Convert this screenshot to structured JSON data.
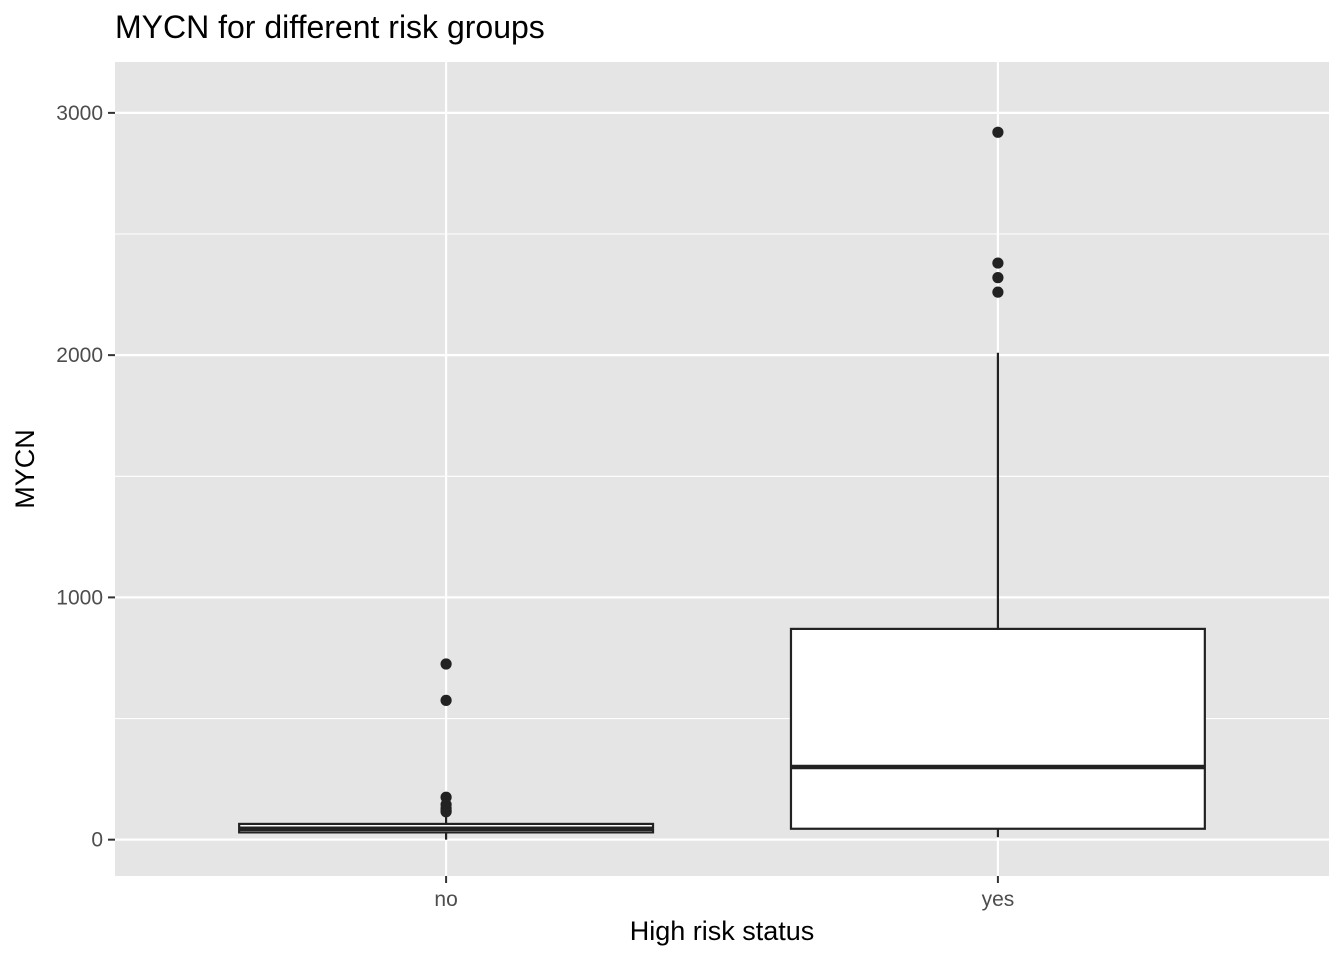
{
  "chart_data": {
    "type": "boxplot",
    "title": "MYCN for different risk groups",
    "xlabel": "High risk status",
    "ylabel": "MYCN",
    "categories": [
      "no",
      "yes"
    ],
    "ylim": [
      -150,
      3210
    ],
    "y_ticks": [
      0,
      1000,
      2000,
      3000
    ],
    "y_minor_ticks": [
      500,
      1500,
      2500
    ],
    "grid": true,
    "legend": "none",
    "boxes": [
      {
        "category": "no",
        "whisker_low": 0,
        "q1": 30,
        "median": 45,
        "q3": 65,
        "whisker_high": 100,
        "outliers": [
          725,
          575,
          175,
          145,
          130,
          120,
          115
        ]
      },
      {
        "category": "yes",
        "whisker_low": 10,
        "q1": 45,
        "median": 300,
        "q3": 870,
        "whisker_high": 2010,
        "outliers": [
          2920,
          2380,
          2320,
          2260
        ]
      }
    ],
    "colors": {
      "panel": "#e5e5e5",
      "grid": "#ffffff",
      "box_fill": "#ffffff",
      "box_line": "#222222",
      "point": "#222222",
      "tick": "#333333"
    }
  }
}
